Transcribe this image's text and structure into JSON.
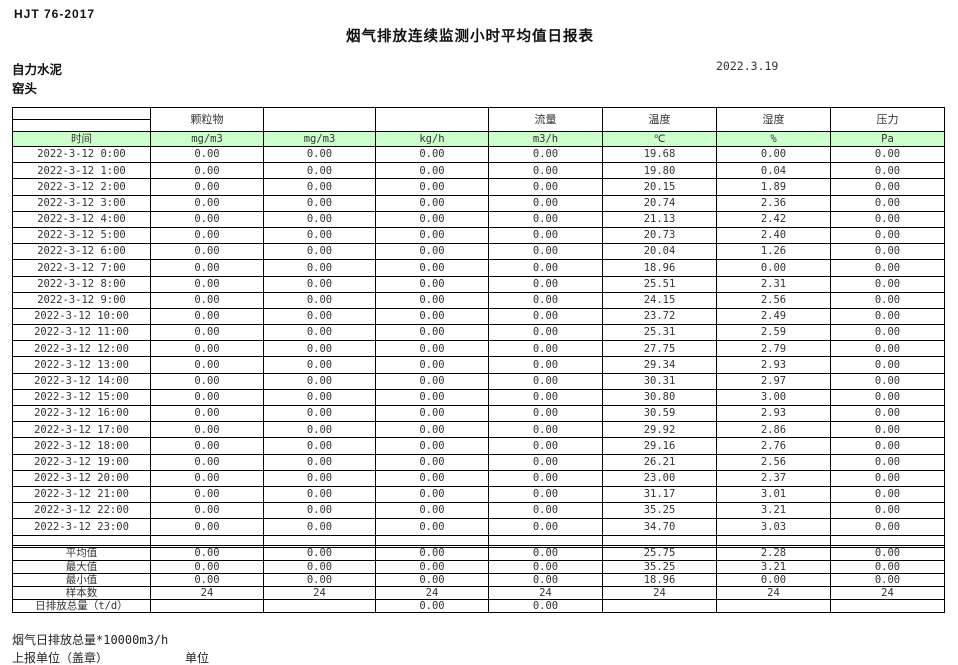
{
  "page": {
    "standard": "HJT 76-2017",
    "title": "烟气排放连续监测小时平均值日报表",
    "company": "自力水泥",
    "location": "窑头",
    "date": "2022.3.19"
  },
  "table": {
    "group_headers": [
      "",
      "颗粒物",
      "",
      "",
      "流量",
      "温度",
      "湿度",
      "压力"
    ],
    "unit_row": [
      "时间",
      "mg/m3",
      "mg/m3",
      "kg/h",
      "m3/h",
      "℃",
      "%",
      "Pa"
    ],
    "rows": [
      [
        "2022-3-12 0:00",
        "0.00",
        "0.00",
        "0.00",
        "0.00",
        "19.68",
        "0.00",
        "0.00"
      ],
      [
        "2022-3-12 1:00",
        "0.00",
        "0.00",
        "0.00",
        "0.00",
        "19.80",
        "0.04",
        "0.00"
      ],
      [
        "2022-3-12 2:00",
        "0.00",
        "0.00",
        "0.00",
        "0.00",
        "20.15",
        "1.89",
        "0.00"
      ],
      [
        "2022-3-12 3:00",
        "0.00",
        "0.00",
        "0.00",
        "0.00",
        "20.74",
        "2.36",
        "0.00"
      ],
      [
        "2022-3-12 4:00",
        "0.00",
        "0.00",
        "0.00",
        "0.00",
        "21.13",
        "2.42",
        "0.00"
      ],
      [
        "2022-3-12 5:00",
        "0.00",
        "0.00",
        "0.00",
        "0.00",
        "20.73",
        "2.40",
        "0.00"
      ],
      [
        "2022-3-12 6:00",
        "0.00",
        "0.00",
        "0.00",
        "0.00",
        "20.04",
        "1.26",
        "0.00"
      ],
      [
        "2022-3-12 7:00",
        "0.00",
        "0.00",
        "0.00",
        "0.00",
        "18.96",
        "0.00",
        "0.00"
      ],
      [
        "2022-3-12 8:00",
        "0.00",
        "0.00",
        "0.00",
        "0.00",
        "25.51",
        "2.31",
        "0.00"
      ],
      [
        "2022-3-12 9:00",
        "0.00",
        "0.00",
        "0.00",
        "0.00",
        "24.15",
        "2.56",
        "0.00"
      ],
      [
        "2022-3-12 10:00",
        "0.00",
        "0.00",
        "0.00",
        "0.00",
        "23.72",
        "2.49",
        "0.00"
      ],
      [
        "2022-3-12 11:00",
        "0.00",
        "0.00",
        "0.00",
        "0.00",
        "25.31",
        "2.59",
        "0.00"
      ],
      [
        "2022-3-12 12:00",
        "0.00",
        "0.00",
        "0.00",
        "0.00",
        "27.75",
        "2.79",
        "0.00"
      ],
      [
        "2022-3-12 13:00",
        "0.00",
        "0.00",
        "0.00",
        "0.00",
        "29.34",
        "2.93",
        "0.00"
      ],
      [
        "2022-3-12 14:00",
        "0.00",
        "0.00",
        "0.00",
        "0.00",
        "30.31",
        "2.97",
        "0.00"
      ],
      [
        "2022-3-12 15:00",
        "0.00",
        "0.00",
        "0.00",
        "0.00",
        "30.80",
        "3.00",
        "0.00"
      ],
      [
        "2022-3-12 16:00",
        "0.00",
        "0.00",
        "0.00",
        "0.00",
        "30.59",
        "2.93",
        "0.00"
      ],
      [
        "2022-3-12 17:00",
        "0.00",
        "0.00",
        "0.00",
        "0.00",
        "29.92",
        "2.86",
        "0.00"
      ],
      [
        "2022-3-12 18:00",
        "0.00",
        "0.00",
        "0.00",
        "0.00",
        "29.16",
        "2.76",
        "0.00"
      ],
      [
        "2022-3-12 19:00",
        "0.00",
        "0.00",
        "0.00",
        "0.00",
        "26.21",
        "2.56",
        "0.00"
      ],
      [
        "2022-3-12 20:00",
        "0.00",
        "0.00",
        "0.00",
        "0.00",
        "23.00",
        "2.37",
        "0.00"
      ],
      [
        "2022-3-12 21:00",
        "0.00",
        "0.00",
        "0.00",
        "0.00",
        "31.17",
        "3.01",
        "0.00"
      ],
      [
        "2022-3-12 22:00",
        "0.00",
        "0.00",
        "0.00",
        "0.00",
        "35.25",
        "3.21",
        "0.00"
      ],
      [
        "2022-3-12 23:00",
        "0.00",
        "0.00",
        "0.00",
        "0.00",
        "34.70",
        "3.03",
        "0.00"
      ]
    ],
    "summary": [
      {
        "label": "平均值",
        "align": "center",
        "values": [
          "0.00",
          "0.00",
          "0.00",
          "0.00",
          "25.75",
          "2.28",
          "0.00"
        ]
      },
      {
        "label": "最大值",
        "align": "center",
        "values": [
          "0.00",
          "0.00",
          "0.00",
          "0.00",
          "35.25",
          "3.21",
          "0.00"
        ]
      },
      {
        "label": "最小值",
        "align": "center",
        "values": [
          "0.00",
          "0.00",
          "0.00",
          "0.00",
          "18.96",
          "0.00",
          "0.00"
        ]
      },
      {
        "label": "样本数",
        "align": "center",
        "values": [
          "24",
          "24",
          "24",
          "24",
          "24",
          "24",
          "24"
        ]
      },
      {
        "label": "日排放总量（t/d）",
        "align": "left",
        "values": [
          "",
          "",
          "0.00",
          "0.00",
          "",
          "",
          ""
        ]
      }
    ]
  },
  "footer": {
    "note": "烟气日排放总量*10000m3/h",
    "report_unit_label": "上报单位（盖章）",
    "unit_label": "单位"
  },
  "colors": {
    "unit_row_bg": "#ccffcc",
    "border": "#000000"
  }
}
